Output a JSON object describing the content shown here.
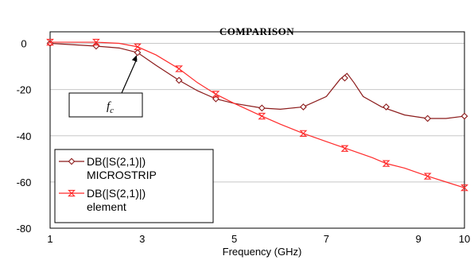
{
  "chart_data": {
    "type": "line",
    "title": "COMPARISON",
    "xlabel": "Frequency (GHz)",
    "ylabel": "",
    "xlim": [
      1,
      10
    ],
    "ylim": [
      -80,
      5
    ],
    "xticks": [
      "1",
      "3",
      "5",
      "7",
      "9",
      "10"
    ],
    "xtick_values": [
      1,
      3,
      5,
      7,
      9,
      10
    ],
    "yticks": [
      "0",
      "-20",
      "-40",
      "-60",
      "-80"
    ],
    "ytick_values": [
      0,
      -20,
      -40,
      -60,
      -80
    ],
    "grid": "horizontal",
    "legend_position": "bottom-left",
    "series": [
      {
        "name": "DB(|S(2,1)|) MICROSTRIP",
        "marker": "diamond",
        "color": "#8b1a1a",
        "x": [
          1.0,
          2.0,
          2.5,
          2.9,
          3.3,
          3.8,
          4.2,
          4.6,
          5.0,
          5.6,
          6.0,
          6.5,
          7.0,
          7.3,
          7.45,
          7.6,
          7.8,
          8.2,
          8.7,
          9.2,
          9.6,
          10.0
        ],
        "y": [
          0,
          -1.2,
          -2,
          -4,
          -9.5,
          -16,
          -20.5,
          -24,
          -26,
          -28,
          -28.5,
          -27.5,
          -23,
          -15.5,
          -13,
          -17,
          -23,
          -27.5,
          -31,
          -32.5,
          -32.5,
          -31.5
        ],
        "marker_x": [
          1.0,
          2.0,
          2.9,
          3.8,
          4.6,
          5.6,
          6.5,
          7.4,
          8.3,
          9.2,
          10.0
        ],
        "marker_y": [
          0,
          -1.2,
          -4,
          -16,
          -24,
          -28,
          -27.5,
          -15,
          -27.5,
          -32.5,
          -31.5
        ]
      },
      {
        "name": "DB(|S(2,1)|) element",
        "marker": "hourglass",
        "color": "#ff2a2a",
        "x": [
          1.0,
          2.0,
          2.5,
          2.9,
          3.3,
          3.8,
          4.2,
          4.6,
          5.0,
          5.6,
          6.0,
          6.5,
          7.0,
          7.5,
          8.0,
          8.3,
          8.7,
          9.2,
          9.6,
          10.0
        ],
        "y": [
          0.5,
          0.5,
          0,
          -1.5,
          -5,
          -11,
          -17,
          -22,
          -26,
          -31.5,
          -35,
          -39,
          -42.5,
          -46,
          -49.5,
          -52,
          -54,
          -57.5,
          -60,
          -62.5
        ],
        "marker_x": [
          1.0,
          2.0,
          2.9,
          3.8,
          4.6,
          5.6,
          6.5,
          7.4,
          8.3,
          9.2,
          10.0
        ],
        "marker_y": [
          0.5,
          0.5,
          -1.5,
          -11,
          -22,
          -31.5,
          -39,
          -45.5,
          -52,
          -57.5,
          -62.5
        ]
      }
    ],
    "legend": [
      {
        "line1": "DB(|S(2,1)|)",
        "line2": "MICROSTRIP"
      },
      {
        "line1": "DB(|S(2,1)|)",
        "line2": "element"
      }
    ],
    "annotation": {
      "label": "f",
      "subscript": "c",
      "points_to_x": 2.9,
      "points_to_y": -4
    }
  }
}
